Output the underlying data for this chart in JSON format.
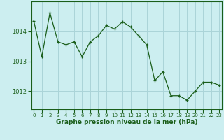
{
  "x": [
    0,
    1,
    2,
    3,
    4,
    5,
    6,
    7,
    8,
    9,
    10,
    11,
    12,
    13,
    14,
    15,
    16,
    17,
    18,
    19,
    20,
    21,
    22,
    23
  ],
  "y": [
    1014.35,
    1013.15,
    1014.62,
    1013.65,
    1013.55,
    1013.65,
    1013.15,
    1013.65,
    1013.85,
    1014.2,
    1014.08,
    1014.32,
    1014.15,
    1013.85,
    1013.55,
    1012.35,
    1012.65,
    1011.85,
    1011.85,
    1011.7,
    1012.0,
    1012.3,
    1012.3,
    1012.2
  ],
  "line_color": "#1a5e1a",
  "marker": "+",
  "bg_color": "#cceef0",
  "grid_color": "#aad4d8",
  "axis_label_color": "#1a5e1a",
  "xlabel": "Graphe pression niveau de la mer (hPa)",
  "yticks": [
    1012,
    1013,
    1014
  ],
  "xticks": [
    0,
    1,
    2,
    3,
    4,
    5,
    6,
    7,
    8,
    9,
    10,
    11,
    12,
    13,
    14,
    15,
    16,
    17,
    18,
    19,
    20,
    21,
    22,
    23
  ],
  "ylim": [
    1011.4,
    1015.0
  ],
  "xlim": [
    -0.3,
    23.3
  ]
}
